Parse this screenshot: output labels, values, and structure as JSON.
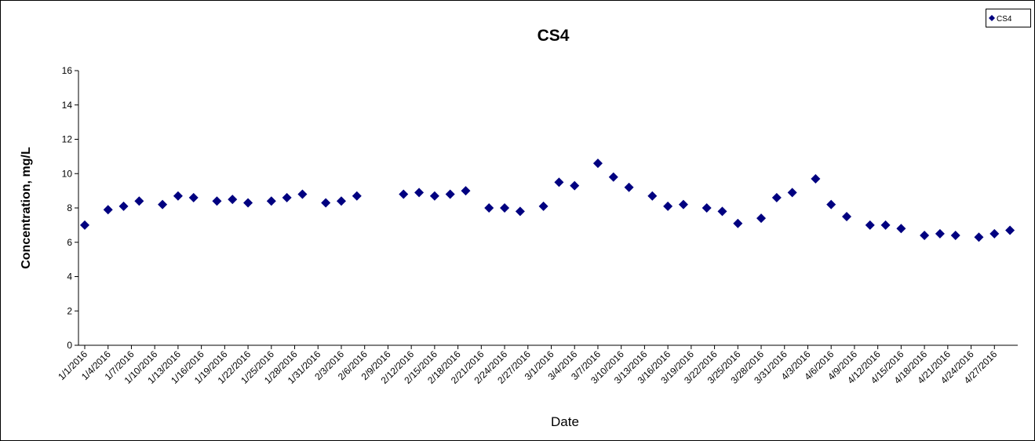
{
  "chart_data": {
    "type": "scatter",
    "title": "CS4",
    "xlabel": "Date",
    "ylabel": "Concentration, mg/L",
    "series": [
      {
        "name": "CS4",
        "color": "#000080",
        "x": [
          "1/1/2016",
          "1/4/2016",
          "1/6/2016",
          "1/8/2016",
          "1/11/2016",
          "1/13/2016",
          "1/15/2016",
          "1/18/2016",
          "1/20/2016",
          "1/22/2016",
          "1/25/2016",
          "1/27/2016",
          "1/29/2016",
          "2/1/2016",
          "2/3/2016",
          "2/5/2016",
          "2/11/2016",
          "2/13/2016",
          "2/15/2016",
          "2/17/2016",
          "2/19/2016",
          "2/22/2016",
          "2/24/2016",
          "2/26/2016",
          "2/29/2016",
          "3/2/2016",
          "3/4/2016",
          "3/7/2016",
          "3/9/2016",
          "3/11/2016",
          "3/14/2016",
          "3/16/2016",
          "3/18/2016",
          "3/21/2016",
          "3/23/2016",
          "3/25/2016",
          "3/28/2016",
          "3/30/2016",
          "4/1/2016",
          "4/4/2016",
          "4/6/2016",
          "4/8/2016",
          "4/11/2016",
          "4/13/2016",
          "4/15/2016",
          "4/18/2016",
          "4/20/2016",
          "4/22/2016",
          "4/25/2016",
          "4/27/2016",
          "4/29/2016"
        ],
        "values": [
          7.0,
          7.9,
          8.1,
          8.4,
          8.2,
          8.7,
          8.6,
          8.4,
          8.5,
          8.3,
          8.4,
          8.6,
          8.8,
          8.3,
          8.4,
          8.7,
          8.8,
          8.9,
          8.7,
          8.8,
          9.0,
          8.0,
          8.0,
          7.8,
          8.1,
          9.5,
          9.3,
          10.6,
          9.8,
          9.2,
          8.7,
          8.1,
          8.2,
          8.0,
          7.8,
          7.1,
          7.4,
          8.6,
          8.9,
          9.7,
          8.2,
          7.5,
          7.0,
          7.0,
          6.8,
          6.4,
          6.5,
          6.4,
          6.3,
          6.5,
          6.7
        ]
      }
    ],
    "xlim": [
      "1/1/2016",
      "4/30/2016"
    ],
    "xticks": [
      "1/1/2016",
      "1/4/2016",
      "1/7/2016",
      "1/10/2016",
      "1/13/2016",
      "1/16/2016",
      "1/19/2016",
      "1/22/2016",
      "1/25/2016",
      "1/28/2016",
      "1/31/2016",
      "2/3/2016",
      "2/6/2016",
      "2/9/2016",
      "2/12/2016",
      "2/15/2016",
      "2/18/2016",
      "2/21/2016",
      "2/24/2016",
      "2/27/2016",
      "3/1/2016",
      "3/4/2016",
      "3/7/2016",
      "3/10/2016",
      "3/13/2016",
      "3/16/2016",
      "3/19/2016",
      "3/22/2016",
      "3/25/2016",
      "3/28/2016",
      "3/31/2016",
      "4/3/2016",
      "4/6/2016",
      "4/9/2016",
      "4/12/2016",
      "4/15/2016",
      "4/18/2016",
      "4/21/2016",
      "4/24/2016",
      "4/27/2016"
    ],
    "ylim": [
      0,
      16
    ],
    "yticks": [
      0,
      2,
      4,
      6,
      8,
      10,
      12,
      14,
      16
    ],
    "grid": false,
    "legend": "upper right"
  }
}
